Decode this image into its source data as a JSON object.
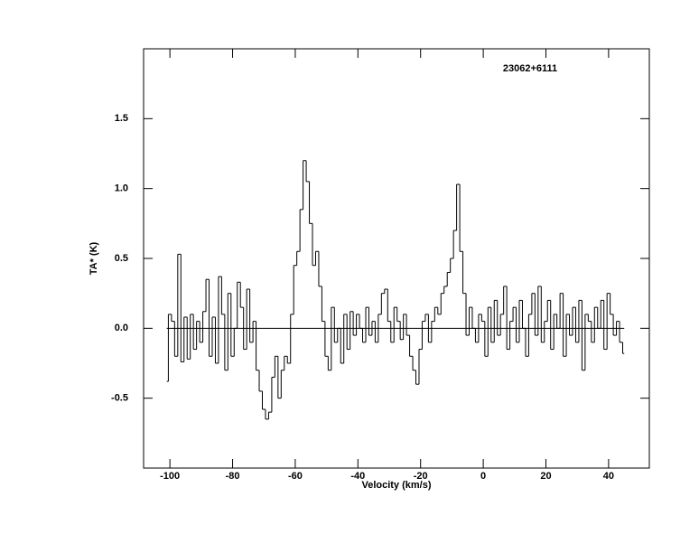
{
  "chart_data": {
    "type": "step",
    "annotation": "23062+6111",
    "xlabel": "Velocity (km/s)",
    "ylabel": "TA* (K)",
    "xlim": [
      -108.4,
      53
    ],
    "ylim": [
      -1,
      2
    ],
    "xticks": [
      -100,
      -80,
      -60,
      -40,
      -20,
      0,
      20,
      40
    ],
    "yticks": [
      {
        "value": -0.5,
        "label": "-0.5"
      },
      {
        "value": 0,
        "label": "0.0"
      },
      {
        "value": 0.5,
        "label": "0.5"
      },
      {
        "value": 1,
        "label": "1.0"
      },
      {
        "value": 1.5,
        "label": "1.5"
      }
    ],
    "x": [
      -101,
      -100,
      -99,
      -98,
      -97,
      -96,
      -95,
      -94,
      -93,
      -92,
      -91,
      -90,
      -89,
      -88,
      -87,
      -86,
      -85,
      -84,
      -83,
      -82,
      -81,
      -80,
      -79,
      -78,
      -77,
      -76,
      -75,
      -74,
      -73,
      -72,
      -71,
      -70,
      -69,
      -68,
      -67,
      -66,
      -65,
      -64,
      -63,
      -62,
      -61,
      -60,
      -59,
      -58,
      -57,
      -56,
      -55,
      -54,
      -53,
      -52,
      -51,
      -50,
      -49,
      -48,
      -47,
      -46,
      -45,
      -44,
      -43,
      -42,
      -41,
      -40,
      -39,
      -38,
      -37,
      -36,
      -35,
      -34,
      -33,
      -32,
      -31,
      -30,
      -29,
      -28,
      -27,
      -26,
      -25,
      -24,
      -23,
      -22,
      -21,
      -20,
      -19,
      -18,
      -17,
      -16,
      -15,
      -14,
      -13,
      -12,
      -11,
      -10,
      -9,
      -8,
      -7,
      -6,
      -5,
      -4,
      -3,
      -2,
      -1,
      0,
      1,
      2,
      3,
      4,
      5,
      6,
      7,
      8,
      9,
      10,
      11,
      12,
      13,
      14,
      15,
      16,
      17,
      18,
      19,
      20,
      21,
      22,
      23,
      24,
      25,
      26,
      27,
      28,
      29,
      30,
      31,
      32,
      33,
      34,
      35,
      36,
      37,
      38,
      39,
      40,
      41,
      42,
      43,
      44,
      45
    ],
    "series": [
      {
        "color": "#000000",
        "values": [
          -0.38,
          0.1,
          0.05,
          -0.2,
          0.53,
          -0.24,
          0.08,
          -0.22,
          0.1,
          -0.15,
          0.05,
          -0.1,
          0.12,
          0.35,
          -0.2,
          0.08,
          -0.25,
          0.37,
          0.1,
          -0.3,
          0.25,
          -0.2,
          0.0,
          0.33,
          0.15,
          -0.15,
          0.28,
          -0.1,
          0.05,
          -0.3,
          -0.45,
          -0.58,
          -0.65,
          -0.6,
          -0.35,
          -0.2,
          -0.5,
          -0.3,
          -0.2,
          -0.25,
          0.1,
          0.45,
          0.55,
          0.85,
          1.2,
          1.05,
          0.75,
          0.45,
          0.55,
          0.3,
          0.05,
          -0.2,
          -0.3,
          0.15,
          -0.1,
          0.0,
          -0.25,
          0.1,
          -0.15,
          0.12,
          -0.05,
          0.1,
          0.0,
          -0.1,
          0.15,
          -0.05,
          0.05,
          -0.1,
          0.1,
          0.25,
          0.28,
          0.05,
          -0.1,
          0.15,
          0.05,
          -0.08,
          0.1,
          -0.05,
          -0.2,
          -0.3,
          -0.4,
          -0.15,
          0.05,
          0.1,
          -0.1,
          0.05,
          0.15,
          0.1,
          0.25,
          0.3,
          0.4,
          0.5,
          0.7,
          1.03,
          0.55,
          0.25,
          -0.05,
          0.15,
          0.0,
          -0.1,
          0.1,
          0.05,
          -0.2,
          0.15,
          -0.1,
          0.2,
          -0.05,
          0.1,
          0.3,
          -0.15,
          0.05,
          0.15,
          -0.1,
          0.2,
          0.0,
          -0.2,
          0.1,
          0.25,
          -0.05,
          0.3,
          -0.1,
          0.05,
          0.2,
          -0.15,
          0.1,
          0.0,
          0.25,
          -0.2,
          0.1,
          -0.05,
          0.15,
          -0.1,
          0.2,
          -0.3,
          0.1,
          0.05,
          -0.1,
          0.15,
          0.0,
          0.2,
          -0.15,
          0.25,
          0.1,
          -0.05,
          0.05,
          -0.1,
          -0.18
        ]
      }
    ]
  }
}
